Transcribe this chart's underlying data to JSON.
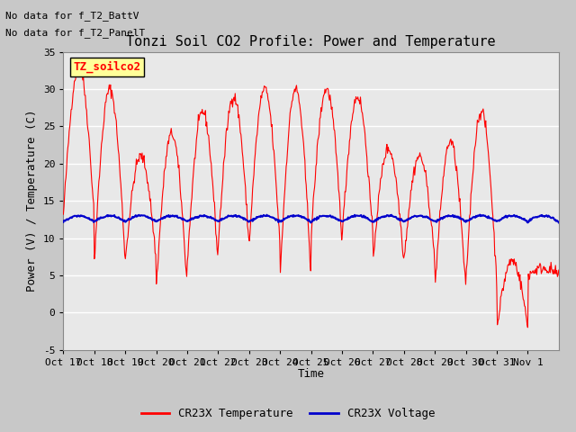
{
  "title": "Tonzi Soil CO2 Profile: Power and Temperature",
  "ylabel": "Power (V) / Temperature (C)",
  "xlabel": "Time",
  "ylim": [
    -5,
    35
  ],
  "yticks": [
    -5,
    0,
    5,
    10,
    15,
    20,
    25,
    30,
    35
  ],
  "xtick_labels": [
    "Oct 17",
    "Oct 18",
    "Oct 19",
    "Oct 20",
    "Oct 21",
    "Oct 22",
    "Oct 23",
    "Oct 24",
    "Oct 25",
    "Oct 26",
    "Oct 27",
    "Oct 28",
    "Oct 29",
    "Oct 30",
    "Oct 31",
    "Nov 1"
  ],
  "no_data_text1": "No data for f_T2_BattV",
  "no_data_text2": "No data for f_T2_PanelT",
  "legend_box_text": "TZ_soilco2",
  "legend_line1": "CR23X Temperature",
  "legend_line2": "CR23X Voltage",
  "red_color": "#ff0000",
  "blue_color": "#0000cc",
  "plot_bg_color": "#e8e8e8",
  "fig_bg_color": "#c8c8c8",
  "title_fontsize": 11,
  "label_fontsize": 9,
  "tick_fontsize": 8,
  "n_days": 16,
  "peaks": [
    33,
    30,
    21,
    24,
    27,
    29,
    30,
    30,
    30,
    29,
    22,
    21,
    23,
    27,
    7,
    6
  ],
  "mins": [
    13,
    7,
    7,
    3.5,
    6.5,
    9,
    9,
    5,
    10,
    10,
    7,
    7,
    3,
    4,
    -2,
    5
  ]
}
